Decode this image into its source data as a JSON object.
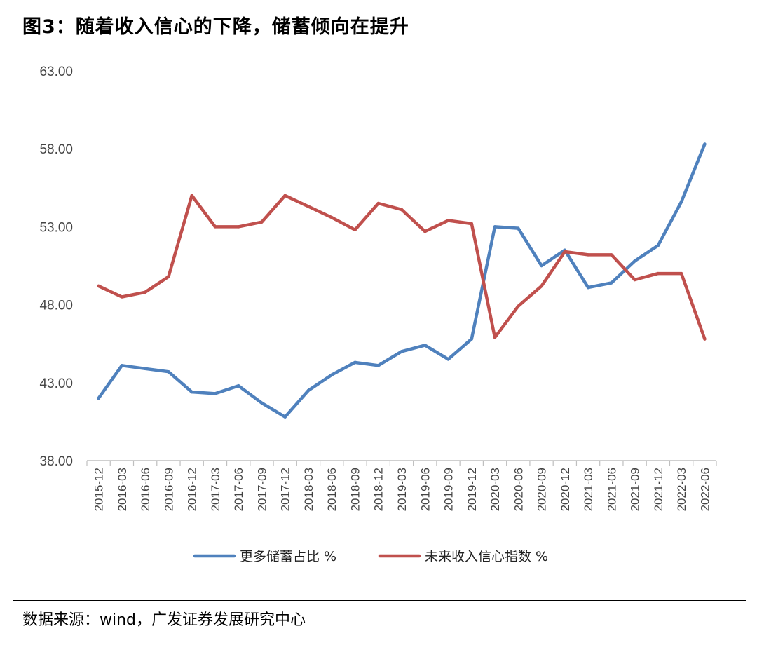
{
  "header": {
    "title": "图3：随着收入信心的下降，储蓄倾向在提升"
  },
  "footer": {
    "source": "数据来源：wind，广发证券发展研究中心"
  },
  "colors": {
    "series1": "#4f81bd",
    "series2": "#c0504d",
    "axis": "#bfbfbf",
    "text": "#444444"
  },
  "chart_data": {
    "type": "line",
    "title": "随着收入信心的下降，储蓄倾向在提升",
    "xlabel": "",
    "ylabel": "",
    "ylim": [
      38,
      63
    ],
    "yticks": [
      "63.00",
      "58.00",
      "53.00",
      "48.00",
      "43.00",
      "38.00"
    ],
    "grid": false,
    "legend_position": "bottom",
    "categories": [
      "2015-12",
      "2016-03",
      "2016-06",
      "2016-09",
      "2016-12",
      "2017-03",
      "2017-06",
      "2017-09",
      "2017-12",
      "2018-03",
      "2018-06",
      "2018-09",
      "2018-12",
      "2019-03",
      "2019-06",
      "2019-09",
      "2019-12",
      "2020-03",
      "2020-06",
      "2020-09",
      "2020-12",
      "2021-03",
      "2021-06",
      "2021-09",
      "2021-12",
      "2022-03",
      "2022-06"
    ],
    "series": [
      {
        "name": "更多储蓄占比 %",
        "color": "#4f81bd",
        "values": [
          42.0,
          44.1,
          43.9,
          43.7,
          42.4,
          42.3,
          42.8,
          41.7,
          40.8,
          42.5,
          43.5,
          44.3,
          44.1,
          45.0,
          45.4,
          44.5,
          45.8,
          53.0,
          52.9,
          50.5,
          51.5,
          49.1,
          49.4,
          50.8,
          51.8,
          54.6,
          58.3
        ]
      },
      {
        "name": "未来收入信心指数 %",
        "color": "#c0504d",
        "values": [
          49.2,
          48.5,
          48.8,
          49.8,
          55.0,
          53.0,
          53.0,
          53.3,
          55.0,
          54.3,
          53.6,
          52.8,
          54.5,
          54.1,
          52.7,
          53.4,
          53.2,
          45.9,
          47.9,
          49.2,
          51.4,
          51.2,
          51.2,
          49.6,
          50.0,
          50.0,
          45.8
        ]
      }
    ]
  }
}
